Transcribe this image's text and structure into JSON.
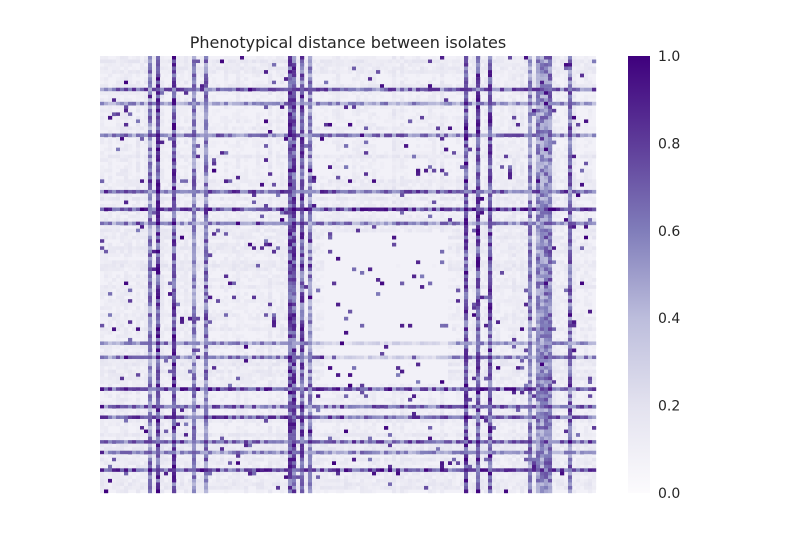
{
  "chart_data": {
    "type": "heatmap",
    "title": "Phenotypical distance between isolates",
    "xlabel": "",
    "ylabel": "",
    "value_range": [
      0,
      1
    ],
    "colormap": "Purples",
    "colorbar": {
      "ticks": [
        0.0,
        0.2,
        0.4,
        0.6,
        0.8,
        1.0
      ],
      "tick_labels": [
        "0.0",
        "0.2",
        "0.4",
        "0.6",
        "0.8",
        "1.0"
      ],
      "colors": {
        "low": "#fcfbfd",
        "mid": "#9e9ac8",
        "high": "#3f007d"
      }
    },
    "grid": false,
    "matrix_note_values": {
      "dense_columns_frac": [
        0.1,
        0.12,
        0.15,
        0.19,
        0.21,
        0.38,
        0.385,
        0.39,
        0.41,
        0.42,
        0.74,
        0.76,
        0.79,
        0.87,
        0.88,
        0.89,
        0.9,
        0.91,
        0.95
      ],
      "dense_rows_frac": [
        0.08,
        0.11,
        0.18,
        0.31,
        0.35,
        0.38,
        0.66,
        0.69,
        0.76,
        0.8,
        0.83,
        0.88,
        0.91,
        0.95
      ]
    }
  }
}
